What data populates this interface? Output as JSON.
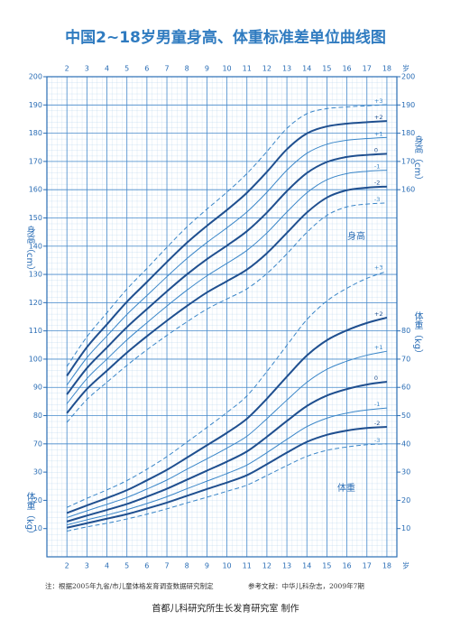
{
  "chart_data": {
    "type": "line",
    "title": "中国2~18岁男童身高、体重标准差单位曲线图",
    "x": [
      2,
      3,
      4,
      5,
      6,
      7,
      8,
      9,
      10,
      11,
      12,
      13,
      14,
      15,
      16,
      17,
      18
    ],
    "xlim": [
      1,
      18.5
    ],
    "xticks": [
      2,
      3,
      4,
      5,
      6,
      7,
      8,
      9,
      10,
      11,
      12,
      13,
      14,
      15,
      16,
      17,
      18
    ],
    "x_unit": "岁",
    "ylim": [
      30,
      200
    ],
    "yticks": [
      70,
      80,
      90,
      100,
      110,
      120,
      130,
      140,
      150,
      160,
      170,
      180,
      190,
      200
    ],
    "right_height_ticks": [
      160,
      170,
      180,
      190,
      200
    ],
    "y_label": "身高（cm）",
    "y2lim": [
      0,
      170
    ],
    "y2ticks": [
      10,
      20,
      30,
      40,
      50,
      60,
      70,
      80
    ],
    "left_weight_ticks": [
      10,
      20,
      30
    ],
    "y2_label": "体重（kg）",
    "height_label": "身高",
    "weight_label": "体重",
    "grid": true,
    "series": [
      {
        "name": "+3",
        "color": "#3a86c8",
        "style": "dashed",
        "width": 1,
        "values": [
          97.4,
          107.9,
          116.4,
          124.8,
          132.1,
          139.6,
          146.8,
          153.1,
          159.1,
          165.7,
          173.5,
          181.7,
          186.9,
          188.7,
          189.3,
          189.7,
          190.1
        ]
      },
      {
        "name": "+2",
        "color": "#1f4f8f",
        "style": "solid",
        "width": 2,
        "values": [
          94.1,
          104.2,
          112.3,
          120.3,
          127.3,
          134.4,
          141.2,
          147.2,
          152.8,
          158.9,
          166.3,
          174.3,
          179.9,
          182.4,
          183.4,
          183.9,
          184.3
        ]
      },
      {
        "name": "+1",
        "color": "#3a86c8",
        "style": "solid",
        "width": 1,
        "values": [
          90.8,
          100.5,
          108.2,
          115.8,
          122.5,
          129.2,
          135.6,
          141.3,
          146.5,
          152.1,
          159.1,
          166.9,
          172.9,
          176.1,
          177.5,
          178.1,
          178.5
        ]
      },
      {
        "name": "0",
        "color": "#1f4f8f",
        "style": "solid",
        "width": 2,
        "values": [
          87.5,
          96.8,
          104.1,
          111.3,
          117.7,
          124.0,
          130.0,
          135.4,
          140.2,
          145.3,
          151.9,
          159.5,
          165.9,
          169.8,
          171.6,
          172.3,
          172.7
        ]
      },
      {
        "name": "-1",
        "color": "#3a86c8",
        "style": "solid",
        "width": 1,
        "values": [
          84.2,
          93.1,
          100.0,
          106.8,
          112.9,
          118.8,
          124.4,
          129.5,
          133.9,
          138.5,
          144.7,
          152.1,
          158.9,
          163.5,
          165.7,
          166.5,
          166.9
        ]
      },
      {
        "name": "-2",
        "color": "#1f4f8f",
        "style": "solid",
        "width": 2,
        "values": [
          80.9,
          89.4,
          95.9,
          102.3,
          108.1,
          113.6,
          118.8,
          123.6,
          127.6,
          131.7,
          137.5,
          144.7,
          151.9,
          157.2,
          159.8,
          160.7,
          161.1
        ]
      },
      {
        "name": "-3",
        "color": "#3a86c8",
        "style": "dashed",
        "width": 1,
        "values": [
          77.6,
          85.7,
          91.8,
          97.8,
          103.3,
          108.4,
          113.2,
          117.7,
          121.3,
          124.9,
          130.3,
          137.3,
          144.9,
          150.9,
          153.9,
          154.9,
          155.3
        ]
      },
      {
        "name": "+3",
        "axis": "y2",
        "color": "#3a86c8",
        "style": "dashed",
        "width": 1,
        "values": [
          17.5,
          20.7,
          23.7,
          27.0,
          31.0,
          35.5,
          40.6,
          45.8,
          51.1,
          57.0,
          65.6,
          74.9,
          84.0,
          90.6,
          95.1,
          98.6,
          101.1
        ]
      },
      {
        "name": "+2",
        "axis": "y2",
        "color": "#1f4f8f",
        "style": "solid",
        "width": 2,
        "values": [
          15.5,
          18.2,
          20.8,
          23.6,
          27.1,
          30.8,
          35.1,
          39.5,
          43.9,
          48.9,
          56.0,
          63.8,
          71.3,
          76.7,
          80.2,
          82.8,
          84.7
        ]
      },
      {
        "name": "+1",
        "axis": "y2",
        "color": "#3a86c8",
        "style": "solid",
        "width": 1,
        "values": [
          13.9,
          16.3,
          18.6,
          21.0,
          24.0,
          27.2,
          31.0,
          34.7,
          38.5,
          42.7,
          48.9,
          55.5,
          61.8,
          66.4,
          69.3,
          71.4,
          72.8
        ]
      },
      {
        "name": "0",
        "axis": "y2",
        "color": "#1f4f8f",
        "style": "solid",
        "width": 2,
        "values": [
          12.5,
          14.6,
          16.6,
          18.7,
          21.3,
          24.1,
          27.3,
          30.5,
          33.7,
          37.3,
          42.5,
          48.1,
          53.4,
          57.1,
          59.4,
          61.0,
          62.0
        ]
      },
      {
        "name": "-1",
        "axis": "y2",
        "color": "#3a86c8",
        "style": "solid",
        "width": 1,
        "values": [
          11.3,
          13.1,
          14.8,
          16.7,
          18.9,
          21.3,
          24.1,
          26.8,
          29.5,
          32.5,
          36.9,
          41.6,
          46.1,
          49.1,
          50.9,
          52.0,
          52.7
        ]
      },
      {
        "name": "-2",
        "axis": "y2",
        "color": "#1f4f8f",
        "style": "solid",
        "width": 2,
        "values": [
          10.3,
          11.9,
          13.5,
          15.1,
          17.1,
          19.2,
          21.6,
          24.0,
          26.3,
          28.9,
          32.8,
          36.9,
          40.7,
          43.2,
          44.7,
          45.6,
          46.0
        ]
      },
      {
        "name": "-3",
        "axis": "y2",
        "color": "#3a86c8",
        "style": "dashed",
        "width": 1,
        "values": [
          9.1,
          10.6,
          11.9,
          13.4,
          15.1,
          17.0,
          19.1,
          21.1,
          23.2,
          25.4,
          28.8,
          32.3,
          35.6,
          37.7,
          38.9,
          39.7,
          40.0
        ]
      }
    ]
  },
  "notes": {
    "data_source": "注：根据2005年九省/市儿童体格发育调查数据研究制定",
    "reference": "参考文献：中华儿科杂志，2009年7期",
    "producer": "首都儿科研究所生长发育研究室 制作"
  }
}
